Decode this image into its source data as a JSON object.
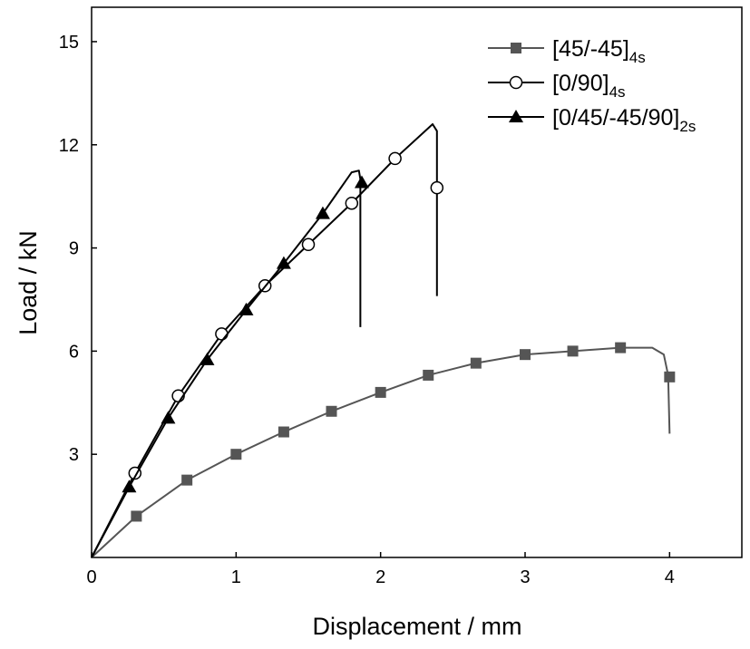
{
  "chart_data": {
    "type": "line",
    "title": "",
    "xlabel": "Displacement / mm",
    "ylabel": "Load / kN",
    "xlim": [
      0,
      4.5
    ],
    "ylim": [
      0,
      16
    ],
    "xticks": [
      0,
      1,
      2,
      3,
      4
    ],
    "yticks": [
      3,
      6,
      9,
      12,
      15
    ],
    "grid": false,
    "legend_position": "top-right",
    "series": [
      {
        "name": "[45/-45]",
        "subscript": "4s",
        "marker": "square",
        "color": "#555555",
        "markers": [
          [
            0.31,
            1.2
          ],
          [
            0.66,
            2.25
          ],
          [
            1.0,
            3.0
          ],
          [
            1.33,
            3.65
          ],
          [
            1.66,
            4.25
          ],
          [
            2.0,
            4.8
          ],
          [
            2.33,
            5.3
          ],
          [
            2.66,
            5.65
          ],
          [
            3.0,
            5.9
          ],
          [
            3.33,
            6.0
          ],
          [
            3.66,
            6.1
          ],
          [
            4.0,
            5.25
          ]
        ],
        "curve": [
          [
            0,
            0
          ],
          [
            0.31,
            1.2
          ],
          [
            0.66,
            2.25
          ],
          [
            1.0,
            3.0
          ],
          [
            1.33,
            3.65
          ],
          [
            1.66,
            4.25
          ],
          [
            2.0,
            4.8
          ],
          [
            2.33,
            5.3
          ],
          [
            2.66,
            5.65
          ],
          [
            3.0,
            5.9
          ],
          [
            3.33,
            6.0
          ],
          [
            3.66,
            6.1
          ],
          [
            3.88,
            6.1
          ],
          [
            3.96,
            5.9
          ],
          [
            3.99,
            5.3
          ],
          [
            4.0,
            3.6
          ]
        ]
      },
      {
        "name": "[0/90]",
        "subscript": "4s",
        "marker": "circle-open",
        "color": "#000000",
        "markers": [
          [
            0.3,
            2.45
          ],
          [
            0.6,
            4.7
          ],
          [
            0.9,
            6.5
          ],
          [
            1.2,
            7.9
          ],
          [
            1.5,
            9.1
          ],
          [
            1.8,
            10.3
          ],
          [
            2.1,
            11.6
          ],
          [
            2.39,
            10.75
          ]
        ],
        "curve": [
          [
            0,
            0
          ],
          [
            0.3,
            2.45
          ],
          [
            0.6,
            4.7
          ],
          [
            0.9,
            6.5
          ],
          [
            1.2,
            7.9
          ],
          [
            1.5,
            9.1
          ],
          [
            1.8,
            10.3
          ],
          [
            2.1,
            11.6
          ],
          [
            2.36,
            12.6
          ],
          [
            2.39,
            12.4
          ],
          [
            2.39,
            7.6
          ]
        ]
      },
      {
        "name": "[0/45/-45/90]",
        "subscript": "2s",
        "marker": "triangle",
        "color": "#000000",
        "markers": [
          [
            0.26,
            2.05
          ],
          [
            0.53,
            4.05
          ],
          [
            0.8,
            5.75
          ],
          [
            1.07,
            7.2
          ],
          [
            1.33,
            8.55
          ],
          [
            1.6,
            10.0
          ],
          [
            1.87,
            10.9
          ]
        ],
        "curve": [
          [
            0,
            0
          ],
          [
            0.26,
            2.05
          ],
          [
            0.53,
            4.05
          ],
          [
            0.8,
            5.75
          ],
          [
            1.07,
            7.2
          ],
          [
            1.33,
            8.55
          ],
          [
            1.6,
            10.0
          ],
          [
            1.8,
            11.2
          ],
          [
            1.85,
            11.25
          ],
          [
            1.86,
            11.0
          ],
          [
            1.86,
            6.7
          ]
        ]
      }
    ]
  }
}
